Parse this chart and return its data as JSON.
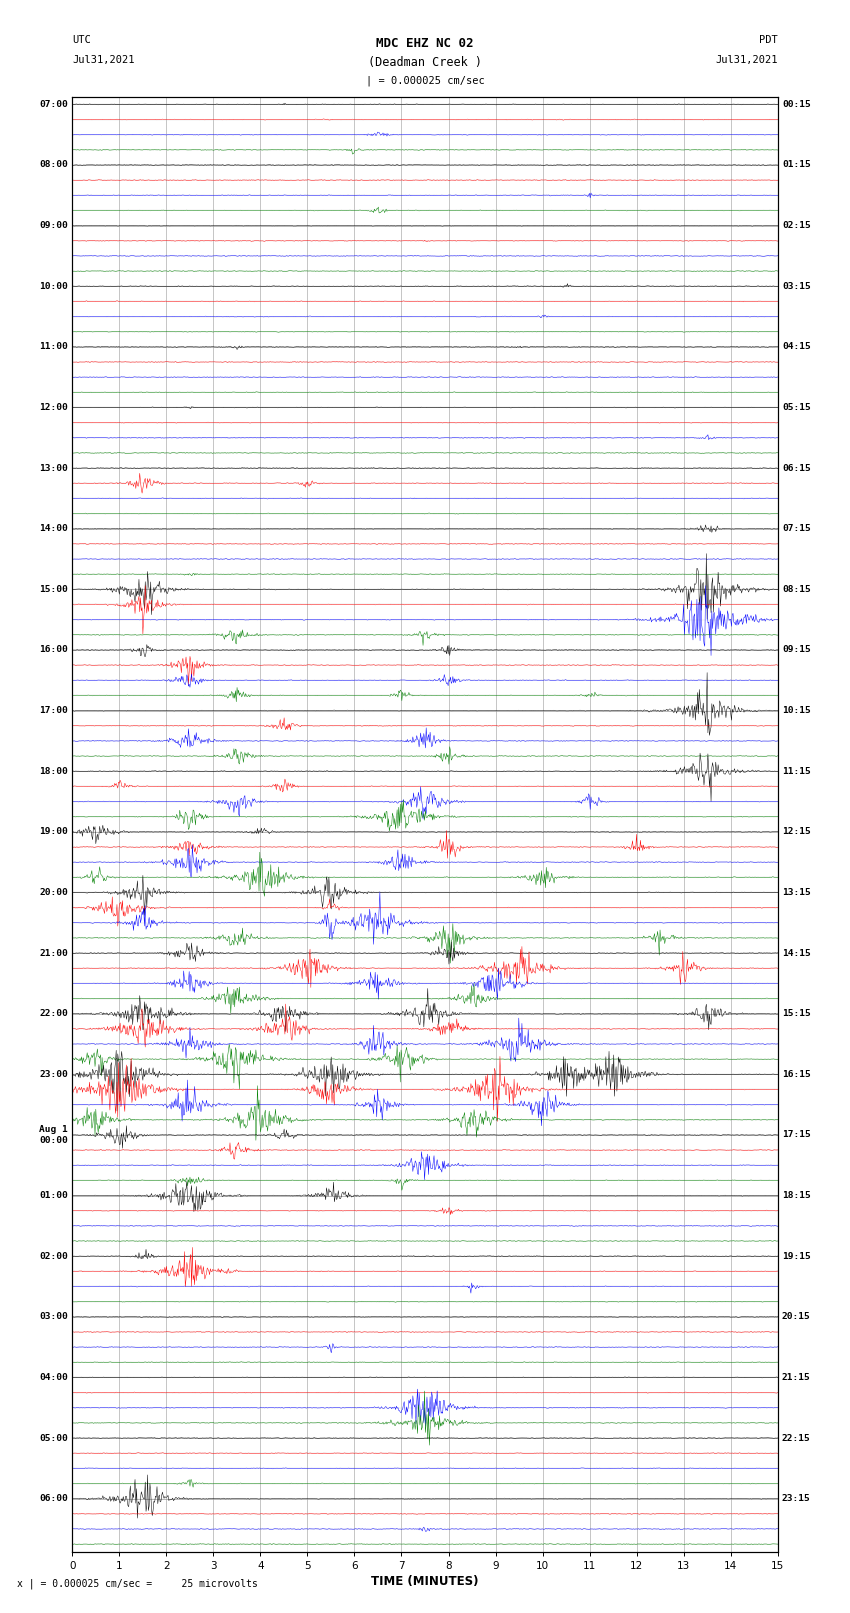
{
  "title_line1": "MDC EHZ NC 02",
  "title_line2": "(Deadman Creek )",
  "title_scale": "| = 0.000025 cm/sec",
  "left_label_top": "UTC",
  "left_label_date": "Jul31,2021",
  "right_label_top": "PDT",
  "right_label_date": "Jul31,2021",
  "xlabel": "TIME (MINUTES)",
  "footer": "x | = 0.000025 cm/sec =     25 microvolts",
  "utc_labels": [
    [
      "07:00",
      0
    ],
    [
      "08:00",
      4
    ],
    [
      "09:00",
      8
    ],
    [
      "10:00",
      12
    ],
    [
      "11:00",
      16
    ],
    [
      "12:00",
      20
    ],
    [
      "13:00",
      24
    ],
    [
      "14:00",
      28
    ],
    [
      "15:00",
      32
    ],
    [
      "16:00",
      36
    ],
    [
      "17:00",
      40
    ],
    [
      "18:00",
      44
    ],
    [
      "19:00",
      48
    ],
    [
      "20:00",
      52
    ],
    [
      "21:00",
      56
    ],
    [
      "22:00",
      60
    ],
    [
      "23:00",
      64
    ],
    [
      "Aug 1\n00:00",
      68
    ],
    [
      "01:00",
      72
    ],
    [
      "02:00",
      76
    ],
    [
      "03:00",
      80
    ],
    [
      "04:00",
      84
    ],
    [
      "05:00",
      88
    ],
    [
      "06:00",
      92
    ]
  ],
  "pdt_labels": [
    [
      "00:15",
      0
    ],
    [
      "01:15",
      4
    ],
    [
      "02:15",
      8
    ],
    [
      "03:15",
      12
    ],
    [
      "04:15",
      16
    ],
    [
      "05:15",
      20
    ],
    [
      "06:15",
      24
    ],
    [
      "07:15",
      28
    ],
    [
      "08:15",
      32
    ],
    [
      "09:15",
      36
    ],
    [
      "10:15",
      40
    ],
    [
      "11:15",
      44
    ],
    [
      "12:15",
      48
    ],
    [
      "13:15",
      52
    ],
    [
      "14:15",
      56
    ],
    [
      "15:15",
      60
    ],
    [
      "16:15",
      64
    ],
    [
      "17:15",
      68
    ],
    [
      "18:15",
      72
    ],
    [
      "19:15",
      76
    ],
    [
      "20:15",
      80
    ],
    [
      "21:15",
      84
    ],
    [
      "22:15",
      88
    ],
    [
      "23:15",
      92
    ]
  ],
  "n_traces": 96,
  "trace_duration_minutes": 15,
  "colors": [
    "black",
    "red",
    "blue",
    "green"
  ],
  "bg_color": "#ffffff",
  "noise_amplitude": 0.04,
  "seed": 12345
}
